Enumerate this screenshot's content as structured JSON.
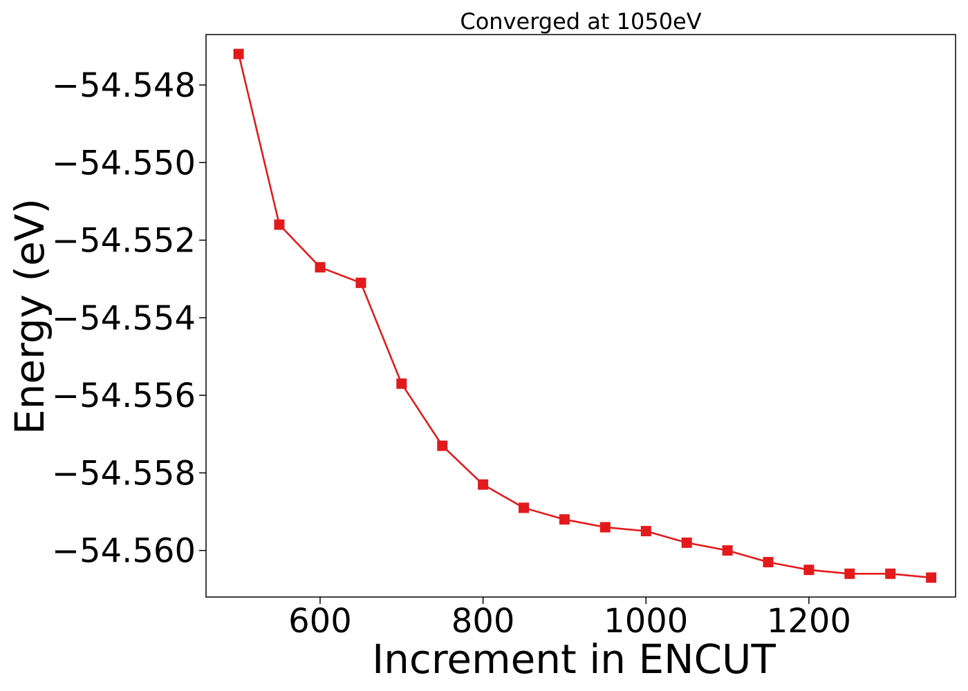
{
  "chart_data": {
    "type": "line",
    "title": "Converged at 1050eV",
    "xlabel": "Increment in ENCUT",
    "ylabel": "Energy (eV)",
    "xlim": [
      460,
      1380
    ],
    "ylim": [
      -54.5612,
      -54.5467
    ],
    "xticks": [
      600,
      800,
      1000,
      1200
    ],
    "yticks": [
      -54.548,
      -54.55,
      -54.552,
      -54.554,
      -54.556,
      -54.558,
      -54.56
    ],
    "ytick_labels": [
      "−54.548",
      "−54.550",
      "−54.552",
      "−54.554",
      "−54.556",
      "−54.558",
      "−54.560"
    ],
    "grid": false,
    "series": [
      {
        "color": "#e31a1c",
        "marker": "square",
        "x": [
          500,
          550,
          600,
          650,
          700,
          750,
          800,
          850,
          900,
          950,
          1000,
          1050,
          1100,
          1150,
          1200,
          1250,
          1300,
          1350
        ],
        "y": [
          -54.5472,
          -54.5516,
          -54.5527,
          -54.5531,
          -54.5557,
          -54.5573,
          -54.5583,
          -54.5589,
          -54.5592,
          -54.5594,
          -54.5595,
          -54.5598,
          -54.56,
          -54.5603,
          -54.5605,
          -54.5606,
          -54.5606,
          -54.5607
        ]
      }
    ]
  }
}
